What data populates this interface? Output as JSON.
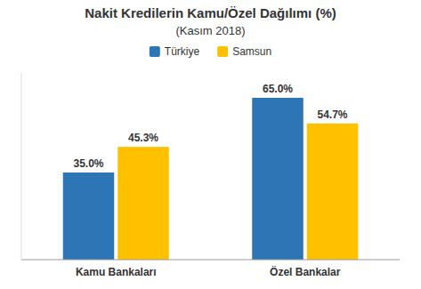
{
  "chart_data": {
    "type": "bar",
    "title": "Nakit Kredilerin Kamu/Özel Dağılımı (%)",
    "subtitle": "(Kasım 2018)",
    "categories": [
      "Kamu Bankaları",
      "Özel Bankalar"
    ],
    "series": [
      {
        "name": "Türkiye",
        "color": "#2E75B6",
        "values": [
          35.0,
          65.0
        ],
        "value_labels": [
          "35.0%",
          "65.0%"
        ]
      },
      {
        "name": "Samsun",
        "color": "#FFC000",
        "values": [
          45.3,
          54.7
        ],
        "value_labels": [
          "45.3%",
          "54.7%"
        ]
      }
    ],
    "ylim": [
      0,
      75
    ],
    "grid": false,
    "legend": "top",
    "data_labels": true,
    "tick_labels": "x"
  }
}
